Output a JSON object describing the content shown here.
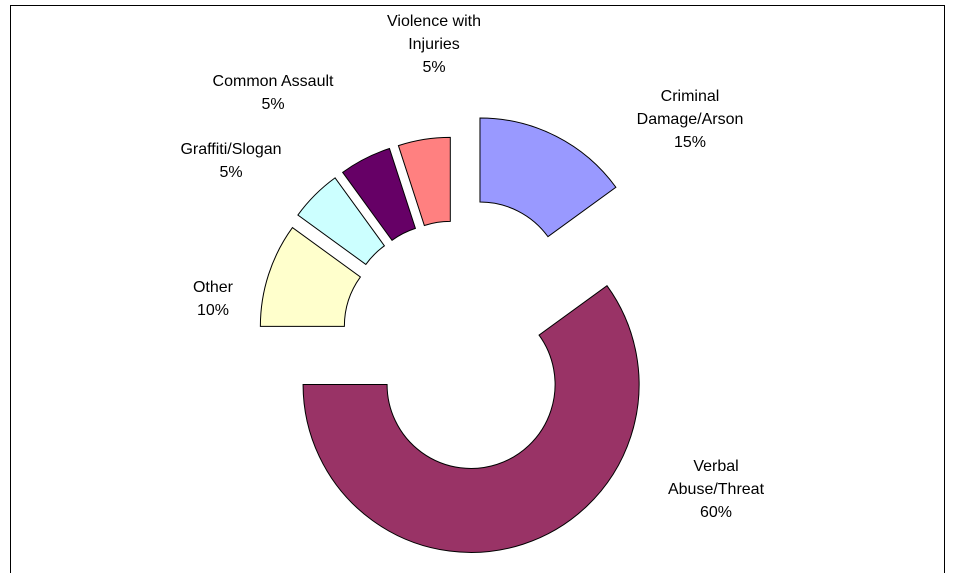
{
  "chart_data": {
    "type": "donut",
    "categories": [
      "Criminal Damage/Arson",
      "Verbal Abuse/Threat",
      "Other",
      "Graffiti/Slogan",
      "Common Assault",
      "Violence with Injuries"
    ],
    "values": [
      15,
      60,
      10,
      5,
      5,
      5
    ],
    "value_labels": [
      "15%",
      "60%",
      "10%",
      "5%",
      "5%",
      "5%"
    ],
    "colors": [
      "#9999ff",
      "#993366",
      "#ffffcc",
      "#ccffff",
      "#660066",
      "#ff8080"
    ]
  }
}
